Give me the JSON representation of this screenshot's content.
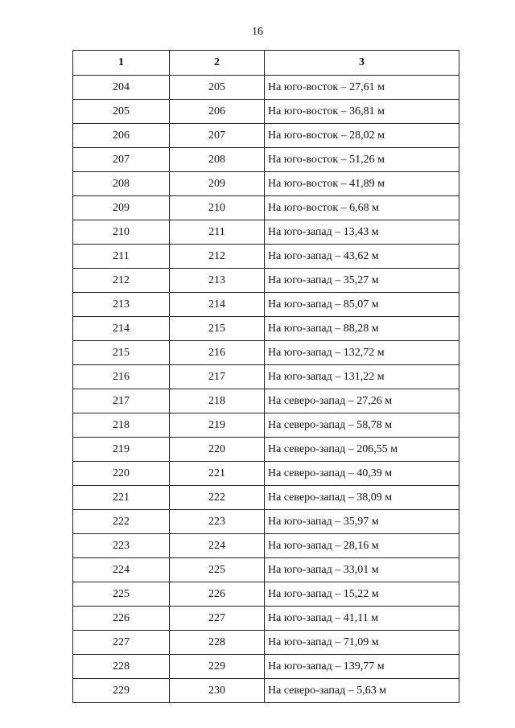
{
  "page_number": "16",
  "table": {
    "headers": [
      "1",
      "2",
      "3"
    ],
    "rows": [
      [
        "204",
        "205",
        "На юго-восток – 27,61 м"
      ],
      [
        "205",
        "206",
        "На юго-восток – 36,81 м"
      ],
      [
        "206",
        "207",
        "На юго-восток – 28,02 м"
      ],
      [
        "207",
        "208",
        "На юго-восток – 51,26 м"
      ],
      [
        "208",
        "209",
        "На юго-восток – 41,89 м"
      ],
      [
        "209",
        "210",
        "На юго-восток – 6,68 м"
      ],
      [
        "210",
        "211",
        "На юго-запад – 13,43 м"
      ],
      [
        "211",
        "212",
        "На юго-запад – 43,62 м"
      ],
      [
        "212",
        "213",
        "На юго-запад – 35,27 м"
      ],
      [
        "213",
        "214",
        "На юго-запад – 85,07 м"
      ],
      [
        "214",
        "215",
        "На юго-запад – 88,28 м"
      ],
      [
        "215",
        "216",
        "На юго-запад – 132,72 м"
      ],
      [
        "216",
        "217",
        "На юго-запад – 131,22 м"
      ],
      [
        "217",
        "218",
        "На северо-запад – 27,26 м"
      ],
      [
        "218",
        "219",
        "На северо-запад – 58,78 м"
      ],
      [
        "219",
        "220",
        "На северо-запад – 206,55 м"
      ],
      [
        "220",
        "221",
        "На северо-запад – 40,39 м"
      ],
      [
        "221",
        "222",
        "На северо-запад – 38,09 м"
      ],
      [
        "222",
        "223",
        "На юго-запад – 35,97 м"
      ],
      [
        "223",
        "224",
        "На юго-запад – 28,16 м"
      ],
      [
        "224",
        "225",
        "На юго-запад – 33,01 м"
      ],
      [
        "225",
        "226",
        "На юго-запад – 15,22 м"
      ],
      [
        "226",
        "227",
        "На юго-запад – 41,11 м"
      ],
      [
        "227",
        "228",
        "На юго-запад – 71,09 м"
      ],
      [
        "228",
        "229",
        "На юго-запад – 139,77 м"
      ],
      [
        "229",
        "230",
        "На северо-запад – 5,63 м"
      ]
    ]
  }
}
